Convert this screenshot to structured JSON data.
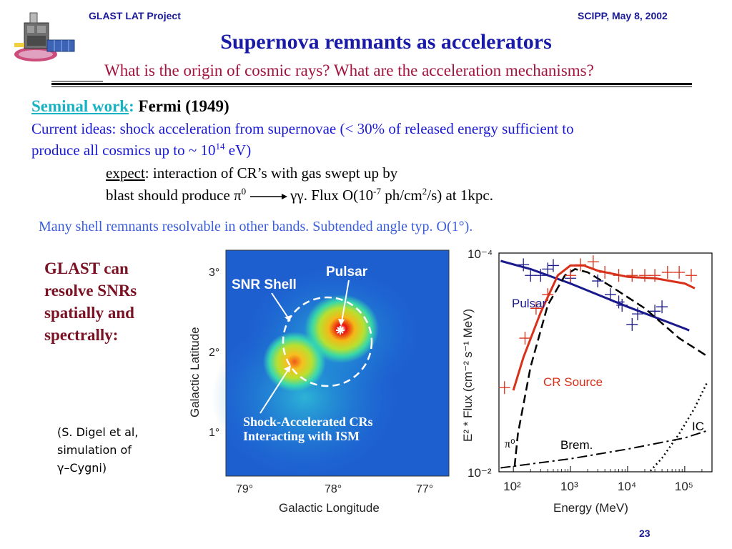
{
  "header": {
    "left": "GLAST LAT Project",
    "right": "SCIPP, May 8, 2002"
  },
  "title": "Supernova remnants as accelerators",
  "subtitle": "What is the origin of cosmic rays?  What are the acceleration mechanisms?",
  "seminal": {
    "label": "Seminal work",
    "colon": ":",
    "value": " Fermi (1949)"
  },
  "current": {
    "line1": "Current ideas: shock acceleration from supernovae (< 30% of released energy sufficient to",
    "line2_a": "produce all cosmics up to ~ 10",
    "line2_sup": "14",
    "line2_b": " eV)"
  },
  "expect": {
    "word": "expect",
    "line1_rest": ": interaction of CR’s with gas swept up by",
    "line2_a": "blast should produce π",
    "line2_sup1": "0",
    "line2_b": "γγ.  Flux O(10",
    "line2_sup2": "-7",
    "line2_c": " ph/cm",
    "line2_sup3": "2",
    "line2_d": "/s) at 1kpc."
  },
  "many_shell": "Many shell remnants resolvable in other bands.  Subtended angle typ. O(1°).",
  "glast_can": "GLAST can resolve SNRs spatially and spectrally:",
  "citation": {
    "line1": "(S. Digel et al,",
    "line2": "simulation of",
    "line3": "γ–Cygni)"
  },
  "page_number": "23",
  "map": {
    "ylabel": "Galactic Latitude",
    "xlabel": "Galactic Longitude",
    "y_ticks": [
      "3°",
      "2°",
      "1°"
    ],
    "x_ticks": [
      "79°",
      "78°",
      "77°"
    ],
    "labels": {
      "snr_shell": "SNR Shell",
      "pulsar": "Pulsar",
      "shock_line1": "Shock-Accelerated CRs",
      "shock_line2": "Interacting with ISM"
    }
  },
  "chart_data": {
    "type": "line",
    "xlabel": "Energy    (MeV)",
    "ylabel": "E² * Flux (cm⁻² s⁻¹ MeV)",
    "xlim": [
      56,
      300000
    ],
    "ylim": [
      0.0001,
      0.01
    ],
    "x_scale": "log",
    "y_scale": "log",
    "x_ticks": [
      {
        "value": 100,
        "label": "10²"
      },
      {
        "value": 1000,
        "label": "10³"
      },
      {
        "value": 10000,
        "label": "10⁴"
      },
      {
        "value": 100000,
        "label": "10⁵"
      }
    ],
    "y_ticks": [
      {
        "value": 0.0001,
        "label": "10⁻⁴"
      },
      {
        "value": 0.01,
        "label": "10⁻²"
      }
    ],
    "annotations": [
      "Pulsar",
      "CR Source",
      "Brem.",
      "IC",
      "π⁰"
    ],
    "colors": {
      "pulsar": "#1a1a8c",
      "cr_source": "#d9301a",
      "components": "#000000"
    },
    "series": [
      {
        "name": "Pulsar",
        "style": "solid",
        "color": "#1a1a8c",
        "points": [
          [
            60,
            0.000118
          ],
          [
            200,
            0.00014
          ],
          [
            1000,
            0.00019
          ],
          [
            10000,
            0.00031
          ],
          [
            100000,
            0.00049
          ],
          [
            120000,
            0.00051
          ]
        ]
      },
      {
        "name": "CR Source",
        "style": "solid",
        "color": "#d9301a",
        "points": [
          [
            100,
            0.0018
          ],
          [
            150,
            0.0009
          ],
          [
            300,
            0.00035
          ],
          [
            600,
            0.00016
          ],
          [
            1000,
            0.00013
          ],
          [
            1700,
            0.00013
          ],
          [
            3000,
            0.000145
          ],
          [
            10000,
            0.000165
          ],
          [
            30000,
            0.00017
          ],
          [
            100000,
            0.00019
          ],
          [
            150000,
            0.00021
          ]
        ]
      },
      {
        "name": "π⁰",
        "style": "dash",
        "color": "#000000",
        "points": [
          [
            105,
            0.009
          ],
          [
            120,
            0.0045
          ],
          [
            200,
            0.0011
          ],
          [
            400,
            0.0003
          ],
          [
            800,
            0.00016
          ],
          [
            1200,
            0.00014
          ],
          [
            2000,
            0.00015
          ],
          [
            5000,
            0.0002
          ],
          [
            20000,
            0.00032
          ],
          [
            80000,
            0.0006
          ],
          [
            250000,
            0.00088
          ]
        ]
      },
      {
        "name": "Brem.",
        "style": "dashdot",
        "color": "#000000",
        "points": [
          [
            60,
            0.0092
          ],
          [
            1000,
            0.0076
          ],
          [
            10000,
            0.0062
          ],
          [
            100000,
            0.0049
          ],
          [
            250000,
            0.0042
          ]
        ]
      },
      {
        "name": "IC",
        "style": "dot",
        "color": "#000000",
        "points": [
          [
            25000,
            0.0098
          ],
          [
            40000,
            0.0075
          ],
          [
            80000,
            0.0045
          ],
          [
            150000,
            0.0026
          ],
          [
            250000,
            0.0015
          ]
        ]
      }
    ],
    "data_points": {
      "pulsar": [
        [
          150,
          0.000128
        ],
        [
          200,
          0.00016
        ],
        [
          300,
          0.00016
        ],
        [
          400,
          0.00014
        ],
        [
          500,
          0.00013
        ],
        [
          1000,
          0.00017
        ],
        [
          3000,
          0.00018
        ],
        [
          5000,
          0.00024
        ],
        [
          7000,
          0.00028
        ],
        [
          8000,
          0.0003
        ],
        [
          12000,
          0.00045
        ],
        [
          15000,
          0.00036
        ],
        [
          30000,
          0.00034
        ],
        [
          40000,
          0.00031
        ]
      ],
      "cr_source": [
        [
          70,
          0.0017
        ],
        [
          160,
          0.0006
        ],
        [
          250,
          0.00032
        ],
        [
          400,
          0.00024
        ],
        [
          1000,
          0.00016
        ],
        [
          1500,
          0.000128
        ],
        [
          2500,
          0.00012
        ],
        [
          4000,
          0.00015
        ],
        [
          7000,
          0.00016
        ],
        [
          12000,
          0.00016
        ],
        [
          20000,
          0.00016
        ],
        [
          30000,
          0.00016
        ],
        [
          50000,
          0.00015
        ],
        [
          80000,
          0.00015
        ],
        [
          130000,
          0.00016
        ]
      ]
    }
  }
}
